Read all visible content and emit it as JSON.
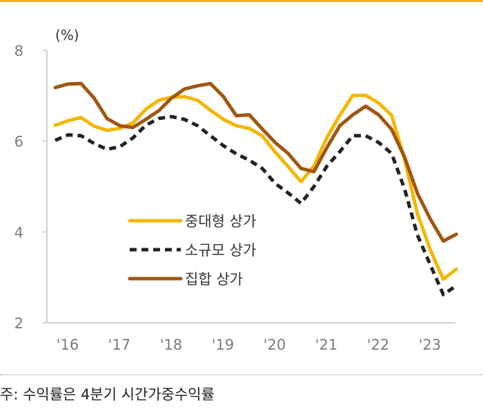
{
  "colors": {
    "top_bar": "#f2b705",
    "axis": "#bfbfbf"
  },
  "chart_data": {
    "type": "line",
    "title": "",
    "xlabel": "",
    "ylabel": "",
    "unit_label": "(%)",
    "xlim": [
      2016,
      2024
    ],
    "ylim": [
      2,
      8
    ],
    "yticks": [
      2,
      4,
      6,
      8
    ],
    "xticks": [
      {
        "value": 2016,
        "label": "'16"
      },
      {
        "value": 2017,
        "label": "'17"
      },
      {
        "value": 2018,
        "label": "'18"
      },
      {
        "value": 2019,
        "label": "'19"
      },
      {
        "value": 2020,
        "label": "'20"
      },
      {
        "value": 2021,
        "label": "'21"
      },
      {
        "value": 2022,
        "label": "'22"
      },
      {
        "value": 2023,
        "label": "'23"
      }
    ],
    "grid": false,
    "legend": "center-left",
    "series": [
      {
        "name": "중대형 상가",
        "color": "#f2b705",
        "dash": "solid",
        "x": [
          2016.0,
          2016.25,
          2016.5,
          2016.75,
          2017.0,
          2017.25,
          2017.5,
          2017.75,
          2018.0,
          2018.25,
          2018.5,
          2018.75,
          2019.0,
          2019.25,
          2019.5,
          2019.75,
          2020.0,
          2020.25,
          2020.5,
          2020.75,
          2021.0,
          2021.25,
          2021.5,
          2021.75,
          2022.0,
          2022.25,
          2022.5,
          2022.75,
          2023.0,
          2023.25,
          2023.5,
          2023.75
        ],
        "values": [
          6.35,
          6.45,
          6.52,
          6.33,
          6.24,
          6.28,
          6.4,
          6.7,
          6.9,
          6.97,
          6.98,
          6.9,
          6.68,
          6.48,
          6.34,
          6.28,
          6.12,
          5.76,
          5.44,
          5.11,
          5.45,
          6.08,
          6.57,
          7.01,
          7.01,
          6.84,
          6.57,
          5.6,
          4.4,
          3.6,
          2.96,
          3.18
        ]
      },
      {
        "name": "소규모 상가",
        "color": "#222222",
        "dash": "dashed",
        "x": [
          2016.0,
          2016.25,
          2016.5,
          2016.75,
          2017.0,
          2017.25,
          2017.5,
          2017.75,
          2018.0,
          2018.25,
          2018.5,
          2018.75,
          2019.0,
          2019.25,
          2019.5,
          2019.75,
          2020.0,
          2020.25,
          2020.5,
          2020.75,
          2021.0,
          2021.25,
          2021.5,
          2021.75,
          2022.0,
          2022.25,
          2022.5,
          2022.75,
          2023.0,
          2023.25,
          2023.5,
          2023.75
        ],
        "values": [
          6.02,
          6.14,
          6.12,
          5.95,
          5.82,
          5.88,
          6.07,
          6.35,
          6.5,
          6.54,
          6.48,
          6.34,
          6.12,
          5.9,
          5.72,
          5.58,
          5.4,
          5.07,
          4.86,
          4.63,
          5.0,
          5.45,
          5.77,
          6.12,
          6.12,
          5.97,
          5.73,
          4.95,
          3.93,
          3.27,
          2.62,
          2.82
        ]
      },
      {
        "name": "집합 상가",
        "color": "#a0560f",
        "dash": "solid",
        "x": [
          2016.0,
          2016.25,
          2016.5,
          2016.75,
          2017.0,
          2017.25,
          2017.5,
          2017.75,
          2018.0,
          2018.25,
          2018.5,
          2018.75,
          2019.0,
          2019.25,
          2019.5,
          2019.75,
          2020.0,
          2020.25,
          2020.5,
          2020.75,
          2021.0,
          2021.25,
          2021.5,
          2021.75,
          2022.0,
          2022.25,
          2022.5,
          2022.75,
          2023.0,
          2023.25,
          2023.5,
          2023.75
        ],
        "values": [
          7.18,
          7.26,
          7.27,
          6.95,
          6.5,
          6.34,
          6.3,
          6.48,
          6.67,
          6.95,
          7.15,
          7.22,
          7.27,
          6.98,
          6.56,
          6.58,
          6.27,
          5.97,
          5.73,
          5.4,
          5.33,
          5.86,
          6.34,
          6.58,
          6.77,
          6.58,
          6.26,
          5.65,
          4.85,
          4.28,
          3.8,
          3.95
        ]
      }
    ]
  },
  "footnote": "주: 수익률은 4분기 시간가중수익률"
}
